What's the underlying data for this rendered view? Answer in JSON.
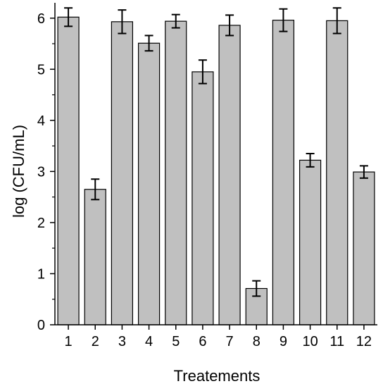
{
  "chart_data": {
    "type": "bar",
    "xlabel": "Treatements",
    "ylabel": "log (CFU/mL)",
    "categories": [
      "1",
      "2",
      "3",
      "4",
      "5",
      "6",
      "7",
      "8",
      "9",
      "10",
      "11",
      "12"
    ],
    "values": [
      6.02,
      2.65,
      5.93,
      5.51,
      5.94,
      4.95,
      5.86,
      0.71,
      5.96,
      3.22,
      5.95,
      2.99
    ],
    "error": [
      0.18,
      0.2,
      0.23,
      0.15,
      0.13,
      0.23,
      0.2,
      0.15,
      0.22,
      0.13,
      0.25,
      0.12
    ],
    "ylim": [
      0,
      6.3
    ],
    "yticks": [
      0,
      1,
      2,
      3,
      4,
      5,
      6
    ],
    "grid": false,
    "legend": "none",
    "colors": {
      "bar_fill": "#c0c0c0",
      "bar_stroke": "#000000",
      "error_bar": "#000000"
    }
  }
}
